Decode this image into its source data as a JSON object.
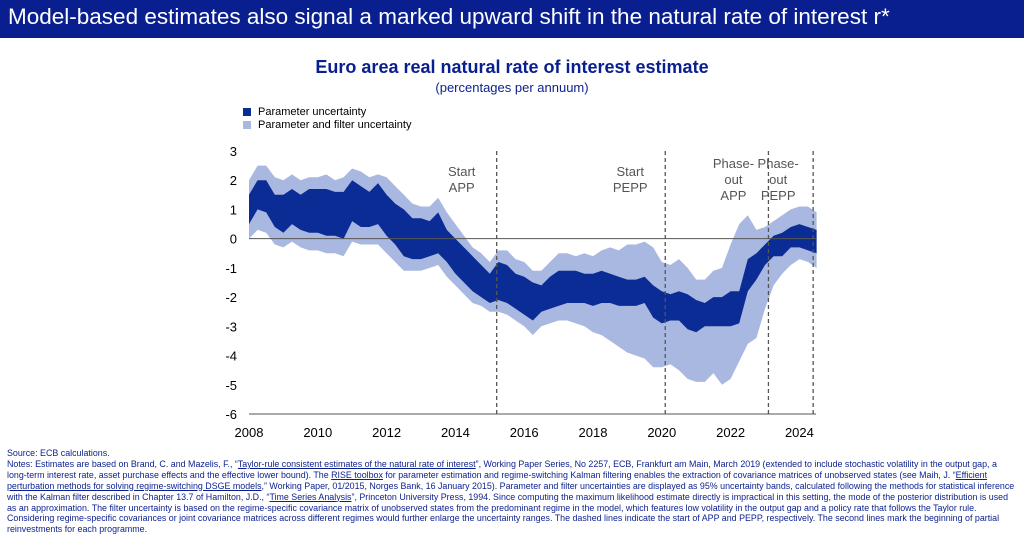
{
  "header": {
    "title": "Model-based estimates also signal a marked upward shift in the natural rate of interest r*"
  },
  "colors": {
    "header_bg": "#0a1f8f",
    "dark_band": "#0a2c94",
    "light_band": "#a9b8e0",
    "event_line": "#555555"
  },
  "chart_data": {
    "type": "area",
    "title": "Euro area real natural rate of interest estimate",
    "subtitle": "(percentages per annuum)",
    "xlim": [
      2008,
      2024.5
    ],
    "ylim": [
      -6,
      3
    ],
    "x_ticks": [
      "2008",
      "2010",
      "2012",
      "2014",
      "2016",
      "2018",
      "2020",
      "2022",
      "2024"
    ],
    "y_ticks": [
      "3",
      "2",
      "1",
      "0",
      "-1",
      "-2",
      "-3",
      "-4",
      "-5",
      "-6"
    ],
    "grid": false,
    "legend_position": "top-left",
    "x": [
      2008.0,
      2008.25,
      2008.5,
      2008.75,
      2009.0,
      2009.25,
      2009.5,
      2009.75,
      2010.0,
      2010.25,
      2010.5,
      2010.75,
      2011.0,
      2011.25,
      2011.5,
      2011.75,
      2012.0,
      2012.25,
      2012.5,
      2012.75,
      2013.0,
      2013.25,
      2013.5,
      2013.75,
      2014.0,
      2014.25,
      2014.5,
      2014.75,
      2015.0,
      2015.25,
      2015.5,
      2015.75,
      2016.0,
      2016.25,
      2016.5,
      2016.75,
      2017.0,
      2017.25,
      2017.5,
      2017.75,
      2018.0,
      2018.25,
      2018.5,
      2018.75,
      2019.0,
      2019.25,
      2019.5,
      2019.75,
      2020.0,
      2020.25,
      2020.5,
      2020.75,
      2021.0,
      2021.25,
      2021.5,
      2021.75,
      2022.0,
      2022.25,
      2022.5,
      2022.75,
      2023.0,
      2023.25,
      2023.5,
      2023.75,
      2024.0,
      2024.25,
      2024.5
    ],
    "series": [
      {
        "name": "Parameter uncertainty",
        "color": "#0a2c94",
        "upper": [
          1.5,
          2.0,
          2.0,
          1.5,
          1.5,
          1.7,
          1.5,
          1.7,
          1.7,
          1.7,
          1.6,
          1.6,
          2.0,
          1.8,
          1.6,
          1.9,
          1.5,
          1.2,
          1.0,
          0.7,
          0.7,
          0.6,
          0.9,
          0.3,
          0.0,
          -0.3,
          -0.6,
          -0.9,
          -1.2,
          -0.8,
          -0.9,
          -1.2,
          -1.3,
          -1.5,
          -1.6,
          -1.3,
          -1.1,
          -1.1,
          -1.1,
          -1.2,
          -1.2,
          -1.1,
          -1.2,
          -1.3,
          -1.4,
          -1.4,
          -1.3,
          -1.6,
          -1.8,
          -1.9,
          -1.8,
          -1.9,
          -2.1,
          -2.2,
          -2.0,
          -2.0,
          -1.8,
          -1.8,
          -0.7,
          -0.5,
          -0.2,
          0.1,
          0.2,
          0.4,
          0.5,
          0.4,
          0.3
        ],
        "lower": [
          0.5,
          1.0,
          0.9,
          0.4,
          0.2,
          0.5,
          0.3,
          0.2,
          0.2,
          0.1,
          0.1,
          0.0,
          0.6,
          0.4,
          0.4,
          0.5,
          0.1,
          -0.2,
          -0.6,
          -0.7,
          -0.7,
          -0.6,
          -0.5,
          -0.8,
          -1.2,
          -1.5,
          -1.8,
          -2.0,
          -2.2,
          -2.1,
          -2.2,
          -2.4,
          -2.6,
          -2.8,
          -2.5,
          -2.4,
          -2.3,
          -2.2,
          -2.2,
          -2.2,
          -2.3,
          -2.2,
          -2.2,
          -2.3,
          -2.3,
          -2.3,
          -2.2,
          -2.7,
          -2.9,
          -2.8,
          -2.8,
          -3.1,
          -3.2,
          -3.0,
          -3.0,
          -3.0,
          -3.0,
          -2.9,
          -1.8,
          -1.4,
          -0.9,
          -0.6,
          -0.6,
          -0.3,
          -0.3,
          -0.4,
          -0.5
        ]
      },
      {
        "name": "Parameter and filter uncertainty",
        "color": "#a9b8e0",
        "upper": [
          2.0,
          2.5,
          2.5,
          2.1,
          2.0,
          2.2,
          2.0,
          2.1,
          2.1,
          2.2,
          2.0,
          2.1,
          2.4,
          2.3,
          2.1,
          2.2,
          2.1,
          1.8,
          1.5,
          1.2,
          1.1,
          1.1,
          1.4,
          0.9,
          0.5,
          0.1,
          -0.3,
          -0.5,
          -0.8,
          -0.4,
          -0.4,
          -0.7,
          -0.8,
          -1.1,
          -1.1,
          -0.8,
          -0.5,
          -0.5,
          -0.6,
          -0.5,
          -0.6,
          -0.4,
          -0.3,
          -0.4,
          -0.2,
          -0.2,
          -0.1,
          -0.3,
          -0.8,
          -0.9,
          -0.7,
          -1.0,
          -1.4,
          -1.4,
          -1.1,
          -1.0,
          -0.2,
          0.5,
          0.8,
          0.3,
          0.4,
          0.6,
          0.8,
          1.0,
          1.1,
          1.1,
          0.9
        ],
        "lower": [
          0.0,
          0.3,
          0.2,
          -0.2,
          -0.3,
          -0.1,
          -0.3,
          -0.4,
          -0.4,
          -0.5,
          -0.5,
          -0.6,
          -0.1,
          -0.2,
          -0.2,
          -0.2,
          -0.5,
          -0.8,
          -1.1,
          -1.1,
          -1.1,
          -1.0,
          -0.9,
          -1.3,
          -1.6,
          -1.9,
          -2.2,
          -2.3,
          -2.5,
          -2.5,
          -2.6,
          -2.8,
          -3.0,
          -3.3,
          -3.0,
          -2.9,
          -2.8,
          -2.8,
          -2.9,
          -3.0,
          -3.2,
          -3.3,
          -3.5,
          -3.7,
          -3.9,
          -4.0,
          -4.1,
          -4.4,
          -4.4,
          -4.3,
          -4.5,
          -4.8,
          -4.9,
          -4.9,
          -4.6,
          -5.0,
          -4.8,
          -4.2,
          -3.6,
          -3.4,
          -2.4,
          -1.6,
          -1.2,
          -0.9,
          -0.7,
          -0.8,
          -1.0
        ]
      }
    ],
    "events": [
      {
        "x": 2015.2,
        "label_lines": [
          "Start",
          "APP"
        ]
      },
      {
        "x": 2020.1,
        "label_lines": [
          "Start",
          "PEPP"
        ]
      },
      {
        "x": 2023.1,
        "label_lines": [
          "Phase-",
          "out",
          "APP"
        ]
      },
      {
        "x": 2024.4,
        "label_lines": [
          "Phase-",
          "out",
          "PEPP"
        ]
      }
    ]
  },
  "footnotes": {
    "source": "Source: ECB calculations.",
    "n1": "Notes: Estimates are based on Brand, C. and Mazelis, F., “",
    "n1_link": "Taylor-rule consistent estimates of the natural rate of interest",
    "n2": "”, Working Paper Series, No 2257, ECB, Frankfurt am Main, March 2019 (extended to include stochastic volatility in the output gap, a long-term interest rate, asset purchase effects and the effective lower bound). The ",
    "n2_link": "RISE toolbox",
    "n3": " for parameter estimation and regime-switching Kalman filtering enables the extraction of covariance matrices of unobserved states (see Maih, J. “",
    "n3_link": "Efficient perturbation methods for solving regime-switching DSGE models",
    "n4": ",” Working Paper, 01/2015, Norges Bank, 16 January 2015). Parameter and filter uncertainties are displayed as 95% uncertainty bands, calculated following the methods for statistical inference with the Kalman filter described in Chapter 13.7 of Hamilton, J.D., “",
    "n4_link": "Time Series Analysis",
    "n5": "”, Princeton University Press, 1994. Since computing the maximum likelihood estimate directly is impractical in this setting, the mode of the posterior distribution is used as an approximation. The filter uncertainty is based on the regime-specific covariance matrix of unobserved states from the predominant regime in the model, which features low volatility in the output gap and a policy rate that follows the Taylor rule. Considering regime-specific covariances or joint covariance matrices across different regimes would further enlarge the uncertainty ranges. The dashed lines indicate the start of APP and PEPP, respectively. The second lines mark the beginning of partial reinvestments for each programme."
  }
}
